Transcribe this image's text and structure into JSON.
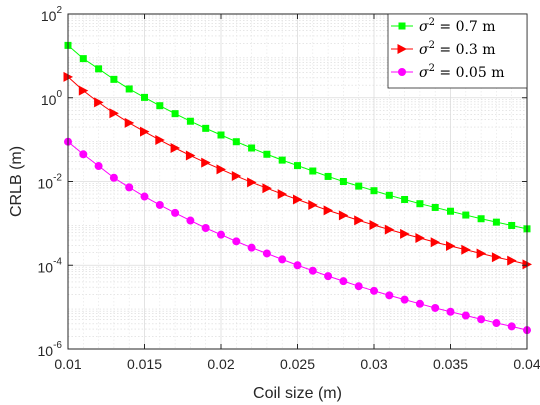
{
  "chart_data": {
    "type": "line",
    "xlabel": "Coil size (m)",
    "ylabel": "CRLB (m)",
    "xlim": [
      0.01,
      0.04
    ],
    "ylim": [
      1e-06,
      100
    ],
    "yscale": "log",
    "grid": true,
    "minor_grid": true,
    "legend_position": "top-right",
    "x_ticks": [
      {
        "value": 0.01,
        "label": "0.01"
      },
      {
        "value": 0.015,
        "label": "0.015"
      },
      {
        "value": 0.02,
        "label": "0.02"
      },
      {
        "value": 0.025,
        "label": "0.025"
      },
      {
        "value": 0.03,
        "label": "0.03"
      },
      {
        "value": 0.035,
        "label": "0.035"
      },
      {
        "value": 0.04,
        "label": "0.04"
      }
    ],
    "y_ticks": [
      {
        "value": 1e-06,
        "base": "10",
        "exp": "-6"
      },
      {
        "value": 0.0001,
        "base": "10",
        "exp": "-4"
      },
      {
        "value": 0.01,
        "base": "10",
        "exp": "-2"
      },
      {
        "value": 1,
        "base": "10",
        "exp": "0"
      },
      {
        "value": 100,
        "base": "10",
        "exp": "2"
      }
    ],
    "x": [
      0.01,
      0.011,
      0.012,
      0.013,
      0.014,
      0.015,
      0.016,
      0.017,
      0.018,
      0.019,
      0.02,
      0.021,
      0.022,
      0.023,
      0.024,
      0.025,
      0.026,
      0.027,
      0.028,
      0.029,
      0.03,
      0.031,
      0.032,
      0.033,
      0.034,
      0.035,
      0.036,
      0.037,
      0.038,
      0.039,
      0.04
    ],
    "series": [
      {
        "legend_label": "σ² = 0.7 m",
        "legend_var": "σ",
        "legend_exp": "2",
        "legend_rest": " = 0.7 m",
        "color": "#00ff00",
        "marker": "square",
        "values": [
          17.8,
          8.6,
          4.9,
          2.75,
          1.62,
          1.02,
          0.646,
          0.417,
          0.275,
          0.186,
          0.129,
          0.0891,
          0.0631,
          0.0447,
          0.0324,
          0.024,
          0.0178,
          0.0132,
          0.01,
          0.00776,
          0.00603,
          0.00468,
          0.00372,
          0.00295,
          0.0024,
          0.00195,
          0.00158,
          0.00129,
          0.00107,
          0.000891,
          0.000741
        ]
      },
      {
        "legend_label": "σ² = 0.3 m",
        "legend_var": "σ",
        "legend_exp": "2",
        "legend_rest": " = 0.3 m",
        "color": "#ff0000",
        "marker": "triangle-right",
        "values": [
          3.16,
          1.48,
          0.776,
          0.427,
          0.251,
          0.155,
          0.0977,
          0.0631,
          0.0417,
          0.0282,
          0.0195,
          0.0135,
          0.00955,
          0.00692,
          0.00501,
          0.00372,
          0.00275,
          0.00204,
          0.00155,
          0.00118,
          0.000912,
          0.000708,
          0.000562,
          0.000447,
          0.000355,
          0.000288,
          0.000234,
          0.000191,
          0.000155,
          0.000129,
          0.000105
        ]
      },
      {
        "legend_label": "σ² = 0.05 m",
        "legend_var": "σ",
        "legend_exp": "2",
        "legend_rest": " = 0.05 m",
        "color": "#ff00ff",
        "marker": "circle",
        "values": [
          0.0891,
          0.0447,
          0.0234,
          0.0123,
          0.00724,
          0.00437,
          0.00275,
          0.00178,
          0.00117,
          0.000776,
          0.000537,
          0.000372,
          0.000263,
          0.000191,
          0.000138,
          0.0001,
          7.41e-05,
          5.5e-05,
          4.17e-05,
          3.16e-05,
          2.45e-05,
          1.91e-05,
          1.51e-05,
          1.2e-05,
          9.55e-06,
          7.76e-06,
          6.31e-06,
          5.13e-06,
          4.17e-06,
          3.47e-06,
          2.82e-06
        ]
      }
    ]
  }
}
